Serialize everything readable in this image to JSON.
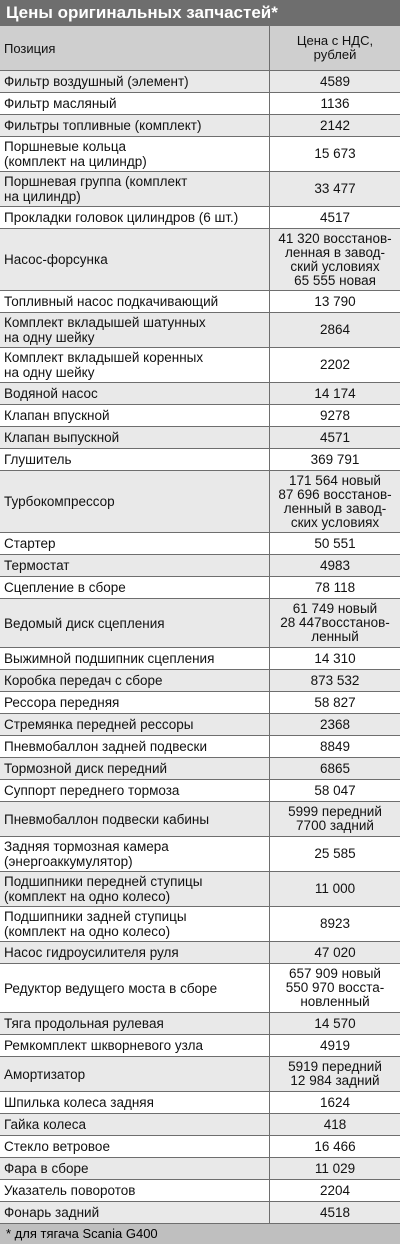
{
  "title": "Цены оригинальных запчастей*",
  "header": {
    "position": "Позиция",
    "price": "Цена с НДС,\nрублей"
  },
  "rows": [
    {
      "name": "Фильтр воздушный (элемент)",
      "price": "4589"
    },
    {
      "name": "Фильтр масляный",
      "price": "1136"
    },
    {
      "name": "Фильтры топливные (комплект)",
      "price": "2142"
    },
    {
      "name": "Поршневые кольца\n(комплект на цилиндр)",
      "price": "15 673"
    },
    {
      "name": "Поршневая группа (комплект\nна цилиндр)",
      "price": "33 477"
    },
    {
      "name": "Прокладки головок цилиндров (6 шт.)",
      "price": "4517"
    },
    {
      "name": "Насос-форсунка",
      "price": "41 320 восстанов-\nленная в завод-\nский условиях\n65 555 новая"
    },
    {
      "name": "Топливный насос подкачивающий",
      "price": "13 790"
    },
    {
      "name": "Комплект вкладышей шатунных\nна одну шейку",
      "price": "2864"
    },
    {
      "name": "Комплект вкладышей коренных\nна одну шейку",
      "price": "2202"
    },
    {
      "name": "Водяной насос",
      "price": "14 174"
    },
    {
      "name": "Клапан впускной",
      "price": "9278"
    },
    {
      "name": "Клапан выпускной",
      "price": "4571"
    },
    {
      "name": "Глушитель",
      "price": "369 791"
    },
    {
      "name": "Турбокомпрессор",
      "price": "171 564 новый\n87 696 восстанов-\nленный в завод-\nских условиях"
    },
    {
      "name": "Стартер",
      "price": "50 551"
    },
    {
      "name": "Термостат",
      "price": "4983"
    },
    {
      "name": "Сцепление в сборе",
      "price": "78 118"
    },
    {
      "name": "Ведомый диск сцепления",
      "price": "61 749 новый\n28 447восстанов-\nленный"
    },
    {
      "name": "Выжимной подшипник сцепления",
      "price": "14 310"
    },
    {
      "name": "Коробка передач с сборе",
      "price": "873 532"
    },
    {
      "name": "Рессора передняя",
      "price": "58 827"
    },
    {
      "name": "Стремянка передней рессоры",
      "price": "2368"
    },
    {
      "name": "Пневмобаллон задней подвески",
      "price": "8849"
    },
    {
      "name": "Тормозной диск передний",
      "price": "6865"
    },
    {
      "name": "Суппорт переднего тормоза",
      "price": "58 047"
    },
    {
      "name": "Пневмобаллон подвески кабины",
      "price": "5999 передний\n7700 задний"
    },
    {
      "name": "Задняя тормозная камера\n(энергоаккумулятор)",
      "price": "25 585"
    },
    {
      "name": "Подшипники передней ступицы\n(комплект на одно колесо)",
      "price": "11 000"
    },
    {
      "name": "Подшипники задней ступицы\n(комплект на одно колесо)",
      "price": "8923"
    },
    {
      "name": "Насос гидроусилителя руля",
      "price": "47 020"
    },
    {
      "name": "Редуктор ведущего моста в сборе",
      "price": "657 909 новый\n550 970 восста-\nновленный"
    },
    {
      "name": "Тяга продольная рулевая",
      "price": "14 570"
    },
    {
      "name": "Ремкомплект шкворневого узла",
      "price": "4919"
    },
    {
      "name": "Амортизатор",
      "price": "5919 передний\n12 984 задний"
    },
    {
      "name": "Шпилька колеса задняя",
      "price": "1624"
    },
    {
      "name": "Гайка колеса",
      "price": "418"
    },
    {
      "name": "Стекло ветровое",
      "price": "16 466"
    },
    {
      "name": "Фара в сборе",
      "price": "11 029"
    },
    {
      "name": "Указатель поворотов",
      "price": "2204"
    },
    {
      "name": "Фонарь задний",
      "price": "4518"
    }
  ],
  "footnote": "* для тягача Scania G400"
}
